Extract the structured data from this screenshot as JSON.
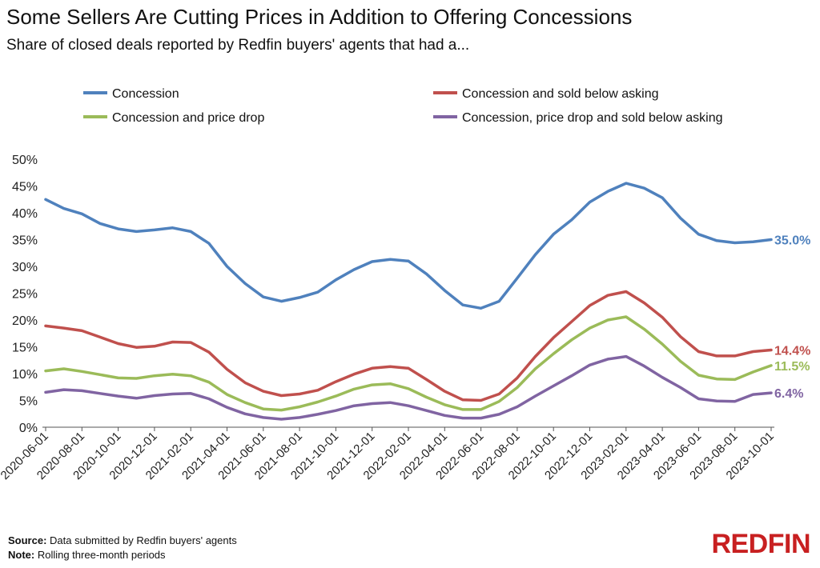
{
  "title": "Some Sellers Are Cutting Prices in Addition to Offering Concessions",
  "subtitle": "Share of closed deals reported by Redfin buyers' agents that had a...",
  "footer": {
    "source_label": "Source:",
    "source_text": " Data submitted by Redfin buyers' agents",
    "note_label": "Note:",
    "note_text": " Rolling three-month periods"
  },
  "logo": "REDFIN",
  "chart_data": {
    "type": "line",
    "x": [
      "2020-06-01",
      "2020-07-01",
      "2020-08-01",
      "2020-09-01",
      "2020-10-01",
      "2020-11-01",
      "2020-12-01",
      "2021-01-01",
      "2021-02-01",
      "2021-03-01",
      "2021-04-01",
      "2021-05-01",
      "2021-06-01",
      "2021-07-01",
      "2021-08-01",
      "2021-09-01",
      "2021-10-01",
      "2021-11-01",
      "2021-12-01",
      "2022-01-01",
      "2022-02-01",
      "2022-03-01",
      "2022-04-01",
      "2022-05-01",
      "2022-06-01",
      "2022-07-01",
      "2022-08-01",
      "2022-09-01",
      "2022-10-01",
      "2022-11-01",
      "2022-12-01",
      "2023-01-01",
      "2023-02-01",
      "2023-03-01",
      "2023-04-01",
      "2023-05-01",
      "2023-06-01",
      "2023-07-01",
      "2023-08-01",
      "2023-09-01",
      "2023-10-01"
    ],
    "x_tick_labels": [
      "2020-06-01",
      "2020-08-01",
      "2020-10-01",
      "2020-12-01",
      "2021-02-01",
      "2021-04-01",
      "2021-06-01",
      "2021-08-01",
      "2021-10-01",
      "2021-12-01",
      "2022-02-01",
      "2022-04-01",
      "2022-06-01",
      "2022-08-01",
      "2022-10-01",
      "2022-12-01",
      "2023-02-01",
      "2023-04-01",
      "2023-06-01",
      "2023-08-01",
      "2023-10-01"
    ],
    "y_tick_labels": [
      "0%",
      "5%",
      "10%",
      "15%",
      "20%",
      "25%",
      "30%",
      "35%",
      "40%",
      "45%",
      "50%"
    ],
    "ylim": [
      0,
      50
    ],
    "grid": false,
    "legend_position": "top",
    "series": [
      {
        "name": "Concession",
        "color": "#4f81bd",
        "values": [
          42.5,
          40.8,
          39.8,
          38.0,
          37.0,
          36.5,
          36.8,
          37.2,
          36.5,
          34.3,
          30.0,
          26.8,
          24.3,
          23.5,
          24.2,
          25.2,
          27.5,
          29.4,
          30.9,
          31.3,
          31.0,
          28.6,
          25.5,
          22.8,
          22.2,
          23.5,
          27.8,
          32.2,
          36.0,
          38.7,
          42.0,
          44.0,
          45.5,
          44.6,
          42.8,
          39.0,
          36.0,
          34.8,
          34.4,
          34.6,
          35.0
        ],
        "end_label": "35.0%"
      },
      {
        "name": "Concession and sold below asking",
        "color": "#c0504d",
        "values": [
          18.9,
          18.5,
          18.0,
          16.8,
          15.6,
          14.9,
          15.1,
          15.9,
          15.8,
          14.0,
          10.8,
          8.3,
          6.7,
          5.9,
          6.2,
          6.9,
          8.5,
          9.9,
          11.0,
          11.3,
          11.0,
          8.9,
          6.7,
          5.1,
          5.0,
          6.2,
          9.2,
          13.2,
          16.7,
          19.7,
          22.7,
          24.6,
          25.3,
          23.2,
          20.5,
          16.9,
          14.1,
          13.3,
          13.3,
          14.1,
          14.4
        ],
        "end_label": "14.4%"
      },
      {
        "name": "Concession and price drop",
        "color": "#9bbb59",
        "values": [
          10.5,
          10.9,
          10.4,
          9.8,
          9.2,
          9.1,
          9.6,
          9.9,
          9.6,
          8.4,
          6.1,
          4.6,
          3.4,
          3.2,
          3.8,
          4.7,
          5.8,
          7.1,
          7.9,
          8.1,
          7.2,
          5.6,
          4.2,
          3.3,
          3.3,
          4.8,
          7.4,
          10.9,
          13.7,
          16.3,
          18.5,
          20.0,
          20.6,
          18.3,
          15.5,
          12.3,
          9.7,
          9.0,
          8.9,
          10.3,
          11.5
        ],
        "end_label": "11.5%"
      },
      {
        "name": "Concession, price drop and sold below asking",
        "color": "#8064a2",
        "values": [
          6.5,
          7.0,
          6.8,
          6.3,
          5.8,
          5.4,
          5.9,
          6.2,
          6.3,
          5.3,
          3.7,
          2.5,
          1.8,
          1.5,
          1.8,
          2.4,
          3.1,
          4.0,
          4.4,
          4.6,
          4.0,
          3.1,
          2.2,
          1.7,
          1.7,
          2.4,
          3.8,
          5.8,
          7.7,
          9.6,
          11.6,
          12.7,
          13.2,
          11.4,
          9.3,
          7.4,
          5.3,
          4.9,
          4.8,
          6.1,
          6.4
        ],
        "end_label": "6.4%"
      }
    ]
  }
}
